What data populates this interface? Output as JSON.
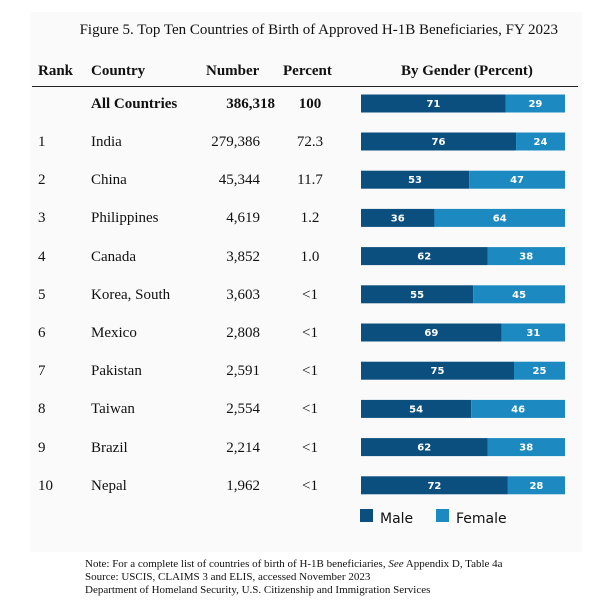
{
  "figure_title": "Figure 5. Top Ten Countries of Birth of Approved H-1B Beneficiaries, FY 2023",
  "headers": {
    "rank": "Rank",
    "country": "Country",
    "number": "Number",
    "percent": "Percent",
    "gender": "By Gender (Percent)"
  },
  "total_row": {
    "country": "All Countries",
    "number": "386,318",
    "percent": "100"
  },
  "rows": [
    {
      "rank": "1",
      "country": "India",
      "number": "279,386",
      "percent": "72.3"
    },
    {
      "rank": "2",
      "country": "China",
      "number": "45,344",
      "percent": "11.7"
    },
    {
      "rank": "3",
      "country": "Philippines",
      "number": "4,619",
      "percent": "1.2"
    },
    {
      "rank": "4",
      "country": "Canada",
      "number": "3,852",
      "percent": "1.0"
    },
    {
      "rank": "5",
      "country": "Korea, South",
      "number": "3,603",
      "percent": "<1"
    },
    {
      "rank": "6",
      "country": "Mexico",
      "number": "2,808",
      "percent": "<1"
    },
    {
      "rank": "7",
      "country": "Pakistan",
      "number": "2,591",
      "percent": "<1"
    },
    {
      "rank": "8",
      "country": "Taiwan",
      "number": "2,554",
      "percent": "<1"
    },
    {
      "rank": "9",
      "country": "Brazil",
      "number": "2,214",
      "percent": "<1"
    },
    {
      "rank": "10",
      "country": "Nepal",
      "number": "1,962",
      "percent": "<1"
    }
  ],
  "legend": {
    "male": "Male",
    "female": "Female"
  },
  "colors": {
    "male": "#0b4f7f",
    "female": "#1c8ac0"
  },
  "notes": {
    "line1_prefix": "Note: For a complete list of countries of birth of H-1B beneficiaries, ",
    "line1_see": "See",
    "line1_suffix": " Appendix D, Table 4a",
    "line2": "Source: USCIS, CLAIMS 3 and ELIS, accessed November 2023",
    "line3": "Department of Homeland Security, U.S. Citizenship and Immigration Services"
  },
  "chart_data": {
    "type": "bar",
    "stacked": true,
    "orientation": "horizontal",
    "title": "By Gender (Percent)",
    "categories": [
      "All Countries",
      "India",
      "China",
      "Philippines",
      "Canada",
      "Korea, South",
      "Mexico",
      "Pakistan",
      "Taiwan",
      "Brazil",
      "Nepal"
    ],
    "series": [
      {
        "name": "Male",
        "values": [
          71,
          76,
          53,
          36,
          62,
          55,
          69,
          75,
          54,
          62,
          72
        ]
      },
      {
        "name": "Female",
        "values": [
          29,
          24,
          47,
          64,
          38,
          45,
          31,
          25,
          46,
          38,
          28
        ]
      }
    ],
    "xlim": [
      0,
      100
    ],
    "legend_position": "bottom"
  }
}
